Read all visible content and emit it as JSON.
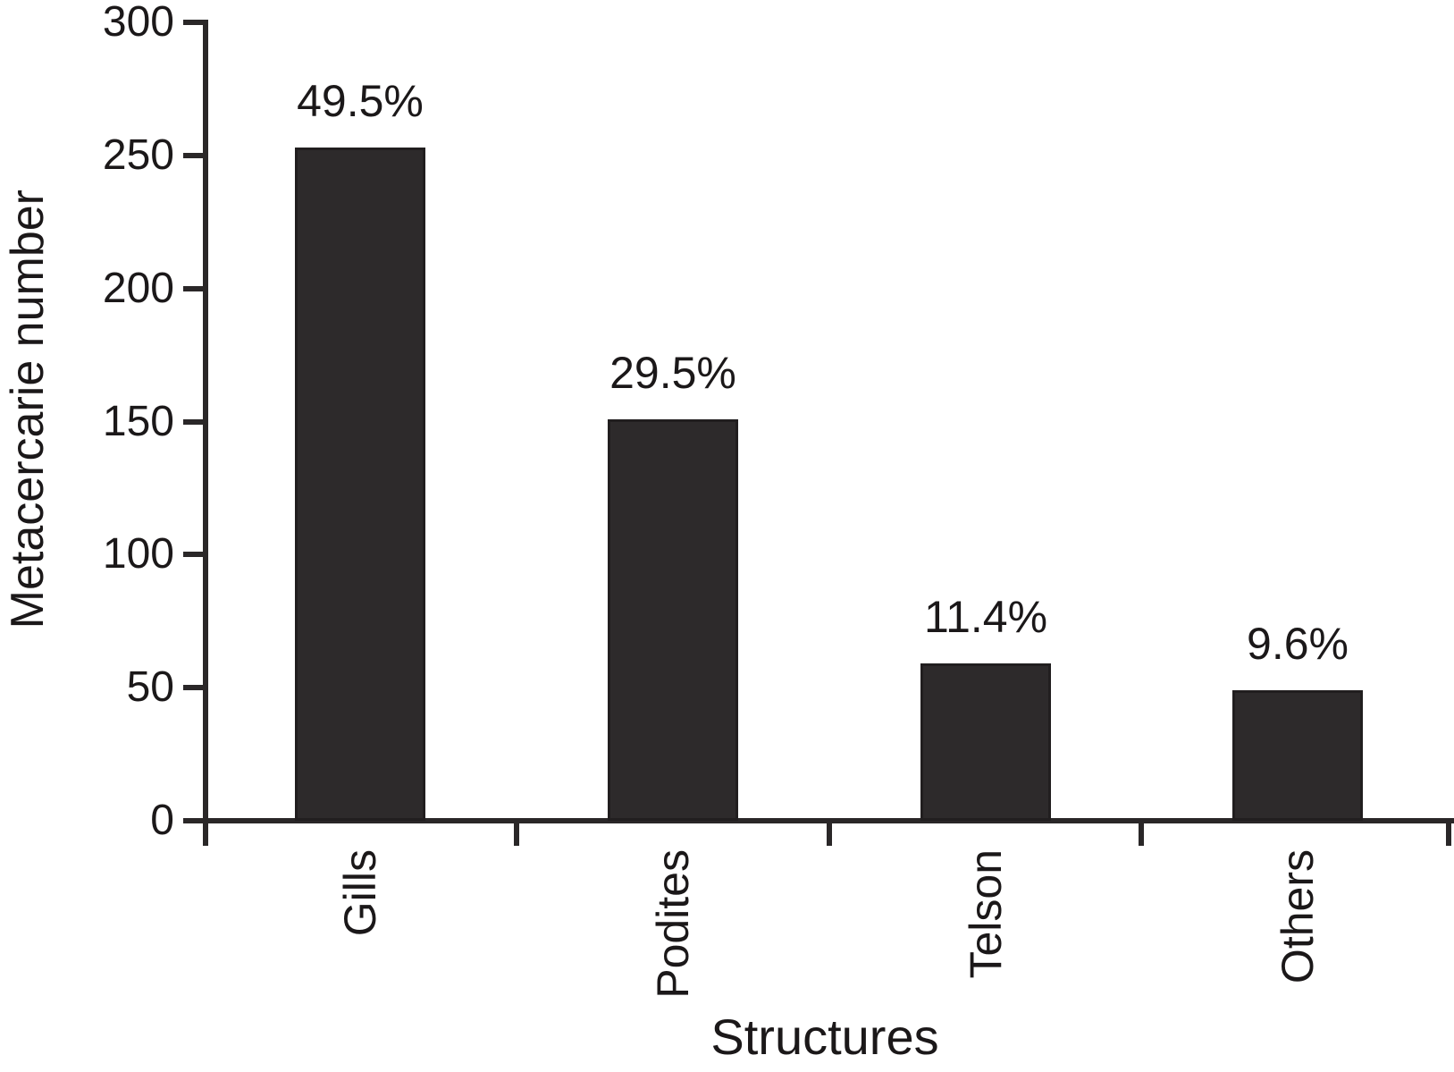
{
  "chart_data": {
    "type": "bar",
    "title": "",
    "categories": [
      "Gills",
      "Podites",
      "Telson",
      "Others"
    ],
    "values": [
      253,
      151,
      59,
      49
    ],
    "bar_labels": [
      "49.5%",
      "29.5%",
      "11.4%",
      "9.6%"
    ],
    "xlabel": "Structures",
    "ylabel": "Metacercarie number",
    "ylim": [
      0,
      300
    ],
    "yticks": [
      0,
      50,
      100,
      150,
      200,
      250,
      300
    ],
    "grid": false,
    "legend_position": "none",
    "bar_color": "#2d2a2b",
    "axis_color": "#2a2728",
    "text_color": "#1b1819",
    "background_color": "#ffffff"
  }
}
